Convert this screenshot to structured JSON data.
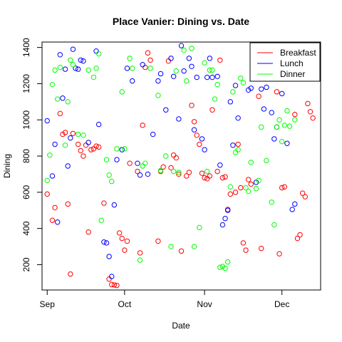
{
  "chart_data": {
    "type": "scatter",
    "title": "Place Vanier: Dining vs. Date",
    "xlabel": "Date",
    "ylabel": "Dining",
    "x_ticks": [
      "Sep",
      "Oct",
      "Nov",
      "Dec"
    ],
    "x_tick_dates": [
      "2014-09-01",
      "2014-10-01",
      "2014-11-01",
      "2014-12-01"
    ],
    "y_ticks": [
      200,
      400,
      600,
      800,
      1000,
      1200,
      1400
    ],
    "xlim": [
      "2014-08-30",
      "2014-12-16"
    ],
    "ylim": [
      60,
      1430
    ],
    "legend_position": "top-right",
    "series": [
      {
        "name": "Breakfast",
        "color": "#ff0000",
        "points": [
          [
            "2014-09-01",
            590
          ],
          [
            "2014-09-03",
            445
          ],
          [
            "2014-09-04",
            515
          ],
          [
            "2014-09-06",
            1035
          ],
          [
            "2014-09-07",
            920
          ],
          [
            "2014-09-08",
            930
          ],
          [
            "2014-09-09",
            535
          ],
          [
            "2014-09-10",
            148
          ],
          [
            "2014-09-11",
            925
          ],
          [
            "2014-09-13",
            865
          ],
          [
            "2014-09-14",
            830
          ],
          [
            "2014-09-15",
            800
          ],
          [
            "2014-09-16",
            860
          ],
          [
            "2014-09-17",
            380
          ],
          [
            "2014-09-18",
            835
          ],
          [
            "2014-09-19",
            840
          ],
          [
            "2014-09-20",
            855
          ],
          [
            "2014-09-21",
            850
          ],
          [
            "2014-09-23",
            540
          ],
          [
            "2014-09-25",
            120
          ],
          [
            "2014-09-26",
            90
          ],
          [
            "2014-09-27",
            88
          ],
          [
            "2014-09-28",
            85
          ],
          [
            "2014-09-29",
            375
          ],
          [
            "2014-09-30",
            345
          ],
          [
            "2014-10-01",
            280
          ],
          [
            "2014-10-02",
            330
          ],
          [
            "2014-10-03",
            760
          ],
          [
            "2014-10-06",
            715
          ],
          [
            "2014-10-07",
            265
          ],
          [
            "2014-10-08",
            970
          ],
          [
            "2014-10-09",
            1290
          ],
          [
            "2014-10-10",
            1370
          ],
          [
            "2014-10-11",
            1330
          ],
          [
            "2014-10-14",
            330
          ],
          [
            "2014-10-15",
            715
          ],
          [
            "2014-10-16",
            740
          ],
          [
            "2014-10-18",
            1325
          ],
          [
            "2014-10-19",
            735
          ],
          [
            "2014-10-20",
            805
          ],
          [
            "2014-10-21",
            790
          ],
          [
            "2014-10-22",
            700
          ],
          [
            "2014-10-23",
            275
          ],
          [
            "2014-10-25",
            690
          ],
          [
            "2014-10-26",
            710
          ],
          [
            "2014-10-27",
            1080
          ],
          [
            "2014-10-28",
            990
          ],
          [
            "2014-10-29",
            915
          ],
          [
            "2014-10-30",
            865
          ],
          [
            "2014-10-31",
            705
          ],
          [
            "2014-11-01",
            680
          ],
          [
            "2014-11-02",
            675
          ],
          [
            "2014-11-03",
            690
          ],
          [
            "2014-11-04",
            1055
          ],
          [
            "2014-11-06",
            715
          ],
          [
            "2014-11-07",
            1330
          ],
          [
            "2014-11-08",
            680
          ],
          [
            "2014-11-09",
            685
          ],
          [
            "2014-11-10",
            505
          ],
          [
            "2014-11-11",
            590
          ],
          [
            "2014-11-13",
            600
          ],
          [
            "2014-11-14",
            865
          ],
          [
            "2014-11-15",
            625
          ],
          [
            "2014-11-16",
            320
          ],
          [
            "2014-11-17",
            280
          ],
          [
            "2014-11-18",
            670
          ],
          [
            "2014-11-19",
            645
          ],
          [
            "2014-11-22",
            1130
          ],
          [
            "2014-11-23",
            290
          ],
          [
            "2014-11-29",
            1155
          ],
          [
            "2014-11-30",
            260
          ],
          [
            "2014-12-01",
            625
          ],
          [
            "2014-12-02",
            630
          ],
          [
            "2014-12-04",
            1240
          ],
          [
            "2014-12-06",
            1030
          ],
          [
            "2014-12-07",
            345
          ],
          [
            "2014-12-08",
            365
          ],
          [
            "2014-12-09",
            595
          ],
          [
            "2014-12-10",
            575
          ],
          [
            "2014-12-11",
            1090
          ],
          [
            "2014-12-12",
            1045
          ],
          [
            "2014-12-13",
            1010
          ]
        ]
      },
      {
        "name": "Lunch",
        "color": "#0000ff",
        "points": [
          [
            "2014-09-01",
            995
          ],
          [
            "2014-09-03",
            690
          ],
          [
            "2014-09-04",
            865
          ],
          [
            "2014-09-05",
            435
          ],
          [
            "2014-09-06",
            1360
          ],
          [
            "2014-09-07",
            1120
          ],
          [
            "2014-09-08",
            1280
          ],
          [
            "2014-09-09",
            745
          ],
          [
            "2014-09-10",
            900
          ],
          [
            "2014-09-11",
            1390
          ],
          [
            "2014-09-12",
            1285
          ],
          [
            "2014-09-13",
            1280
          ],
          [
            "2014-09-14",
            1330
          ],
          [
            "2014-09-15",
            1325
          ],
          [
            "2014-09-17",
            875
          ],
          [
            "2014-09-20",
            1380
          ],
          [
            "2014-09-21",
            975
          ],
          [
            "2014-09-23",
            325
          ],
          [
            "2014-09-24",
            320
          ],
          [
            "2014-09-25",
            245
          ],
          [
            "2014-09-26",
            135
          ],
          [
            "2014-09-27",
            530
          ],
          [
            "2014-09-28",
            780
          ],
          [
            "2014-09-30",
            835
          ],
          [
            "2014-10-02",
            1285
          ],
          [
            "2014-10-04",
            1215
          ],
          [
            "2014-10-06",
            760
          ],
          [
            "2014-10-07",
            695
          ],
          [
            "2014-10-08",
            1305
          ],
          [
            "2014-10-10",
            700
          ],
          [
            "2014-10-12",
            920
          ],
          [
            "2014-10-14",
            1215
          ],
          [
            "2014-10-15",
            1255
          ],
          [
            "2014-10-17",
            1055
          ],
          [
            "2014-10-19",
            1340
          ],
          [
            "2014-10-20",
            1240
          ],
          [
            "2014-10-22",
            1005
          ],
          [
            "2014-10-23",
            1410
          ],
          [
            "2014-10-24",
            1270
          ],
          [
            "2014-10-26",
            1340
          ],
          [
            "2014-10-27",
            1295
          ],
          [
            "2014-10-28",
            945
          ],
          [
            "2014-10-29",
            1235
          ],
          [
            "2014-10-31",
            895
          ],
          [
            "2014-11-01",
            835
          ],
          [
            "2014-11-02",
            1235
          ],
          [
            "2014-11-03",
            1340
          ],
          [
            "2014-11-04",
            1235
          ],
          [
            "2014-11-06",
            1240
          ],
          [
            "2014-11-07",
            750
          ],
          [
            "2014-11-08",
            420
          ],
          [
            "2014-11-09",
            455
          ],
          [
            "2014-11-10",
            500
          ],
          [
            "2014-11-11",
            1100
          ],
          [
            "2014-11-12",
            860
          ],
          [
            "2014-11-13",
            1190
          ],
          [
            "2014-11-14",
            1010
          ],
          [
            "2014-11-18",
            1165
          ],
          [
            "2014-11-19",
            1175
          ],
          [
            "2014-11-21",
            655
          ],
          [
            "2014-11-23",
            1170
          ],
          [
            "2014-11-24",
            1060
          ],
          [
            "2014-11-25",
            1180
          ],
          [
            "2014-11-27",
            1040
          ],
          [
            "2014-11-28",
            895
          ],
          [
            "2014-11-29",
            960
          ],
          [
            "2014-12-01",
            1145
          ],
          [
            "2014-12-03",
            870
          ],
          [
            "2014-12-05",
            505
          ],
          [
            "2014-12-06",
            535
          ]
        ]
      },
      {
        "name": "Dinner",
        "color": "#00ff00",
        "points": [
          [
            "2014-09-01",
            665
          ],
          [
            "2014-09-02",
            805
          ],
          [
            "2014-09-03",
            1195
          ],
          [
            "2014-09-04",
            1275
          ],
          [
            "2014-09-05",
            1115
          ],
          [
            "2014-09-06",
            1290
          ],
          [
            "2014-09-08",
            860
          ],
          [
            "2014-09-09",
            1100
          ],
          [
            "2014-09-10",
            1330
          ],
          [
            "2014-09-11",
            1305
          ],
          [
            "2014-09-13",
            920
          ],
          [
            "2014-09-15",
            915
          ],
          [
            "2014-09-17",
            1275
          ],
          [
            "2014-09-19",
            1235
          ],
          [
            "2014-09-20",
            1285
          ],
          [
            "2014-09-21",
            1365
          ],
          [
            "2014-09-22",
            445
          ],
          [
            "2014-09-24",
            780
          ],
          [
            "2014-09-25",
            695
          ],
          [
            "2014-09-26",
            660
          ],
          [
            "2014-09-28",
            840
          ],
          [
            "2014-09-30",
            1155
          ],
          [
            "2014-10-01",
            840
          ],
          [
            "2014-10-03",
            1340
          ],
          [
            "2014-10-04",
            1285
          ],
          [
            "2014-10-07",
            225
          ],
          [
            "2014-10-08",
            745
          ],
          [
            "2014-10-09",
            760
          ],
          [
            "2014-10-11",
            1285
          ],
          [
            "2014-10-14",
            1135
          ],
          [
            "2014-10-15",
            720
          ],
          [
            "2014-10-17",
            800
          ],
          [
            "2014-10-19",
            300
          ],
          [
            "2014-10-20",
            715
          ],
          [
            "2014-10-21",
            1270
          ],
          [
            "2014-10-22",
            710
          ],
          [
            "2014-10-24",
            1385
          ],
          [
            "2014-10-25",
            1215
          ],
          [
            "2014-10-27",
            1395
          ],
          [
            "2014-10-28",
            300
          ],
          [
            "2014-10-30",
            405
          ],
          [
            "2014-11-01",
            1315
          ],
          [
            "2014-11-02",
            715
          ],
          [
            "2014-11-03",
            1275
          ],
          [
            "2014-11-04",
            1275
          ],
          [
            "2014-11-05",
            1115
          ],
          [
            "2014-11-06",
            1195
          ],
          [
            "2014-11-07",
            185
          ],
          [
            "2014-11-08",
            190
          ],
          [
            "2014-11-09",
            180
          ],
          [
            "2014-11-10",
            215
          ],
          [
            "2014-11-11",
            630
          ],
          [
            "2014-11-12",
            1155
          ],
          [
            "2014-11-13",
            820
          ],
          [
            "2014-11-14",
            835
          ],
          [
            "2014-11-15",
            1230
          ],
          [
            "2014-11-16",
            1205
          ],
          [
            "2014-11-17",
            625
          ],
          [
            "2014-11-18",
            605
          ],
          [
            "2014-11-19",
            765
          ],
          [
            "2014-11-21",
            620
          ],
          [
            "2014-11-22",
            665
          ],
          [
            "2014-11-23",
            960
          ],
          [
            "2014-11-25",
            775
          ],
          [
            "2014-11-27",
            545
          ],
          [
            "2014-11-28",
            420
          ],
          [
            "2014-11-29",
            960
          ],
          [
            "2014-11-30",
            1000
          ],
          [
            "2014-12-01",
            880
          ],
          [
            "2014-12-02",
            970
          ],
          [
            "2014-12-03",
            1050
          ],
          [
            "2014-12-04",
            965
          ],
          [
            "2014-12-06",
            1000
          ]
        ]
      }
    ]
  }
}
